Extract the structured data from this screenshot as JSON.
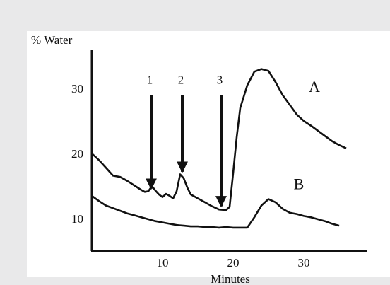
{
  "chart_data": {
    "type": "line",
    "ylabel": "% Water",
    "xlabel": "Minutes",
    "xlim": [
      0,
      39
    ],
    "ylim": [
      5,
      36
    ],
    "x_ticks": [
      10,
      20,
      30
    ],
    "y_ticks": [
      10,
      20,
      30
    ],
    "grid": false,
    "series": [
      {
        "name": "A",
        "x": [
          0,
          1,
          2,
          3,
          4,
          5,
          6,
          7,
          7.5,
          8,
          8.5,
          9,
          9.5,
          10,
          10.5,
          11,
          11.5,
          12,
          12.5,
          13,
          13.5,
          14,
          15,
          16,
          17,
          18,
          19,
          19.5,
          20,
          20.5,
          21,
          22,
          23,
          24,
          25,
          26,
          27,
          28,
          29,
          30,
          31,
          32,
          33,
          34,
          35,
          36
        ],
        "y": [
          20,
          19,
          17.8,
          16.6,
          16.4,
          15.8,
          15.1,
          14.4,
          14.1,
          14.2,
          15,
          14.3,
          13.7,
          13.3,
          13.8,
          13.5,
          13.1,
          14.2,
          16.8,
          16.2,
          14.8,
          13.7,
          13.1,
          12.5,
          11.9,
          11.4,
          11.3,
          11.8,
          17,
          22.5,
          27,
          30.5,
          32.6,
          33,
          32.7,
          31,
          29,
          27.5,
          26,
          25,
          24.3,
          23.5,
          22.7,
          21.9,
          21.3,
          20.8
        ]
      },
      {
        "name": "B",
        "x": [
          0,
          1,
          2,
          3,
          4,
          5,
          6,
          7,
          8,
          9,
          10,
          11,
          12,
          13,
          14,
          15,
          16,
          17,
          18,
          19,
          20,
          21,
          22,
          23,
          24,
          25,
          26,
          27,
          28,
          29,
          30,
          31,
          32,
          33,
          34,
          35
        ],
        "y": [
          13.5,
          12.7,
          12,
          11.6,
          11.2,
          10.8,
          10.5,
          10.2,
          9.9,
          9.6,
          9.4,
          9.2,
          9.0,
          8.9,
          8.8,
          8.8,
          8.7,
          8.7,
          8.6,
          8.7,
          8.6,
          8.6,
          8.6,
          10.2,
          12,
          13,
          12.5,
          11.5,
          10.9,
          10.7,
          10.4,
          10.2,
          9.9,
          9.6,
          9.2,
          8.9
        ]
      }
    ],
    "annotations": [
      {
        "text": "1",
        "x": 8.4,
        "y_from": 29,
        "y_to": 14.6
      },
      {
        "text": "2",
        "x": 12.8,
        "y_from": 29,
        "y_to": 17.2
      },
      {
        "text": "3",
        "x": 18.3,
        "y_from": 29,
        "y_to": 11.9
      }
    ]
  }
}
